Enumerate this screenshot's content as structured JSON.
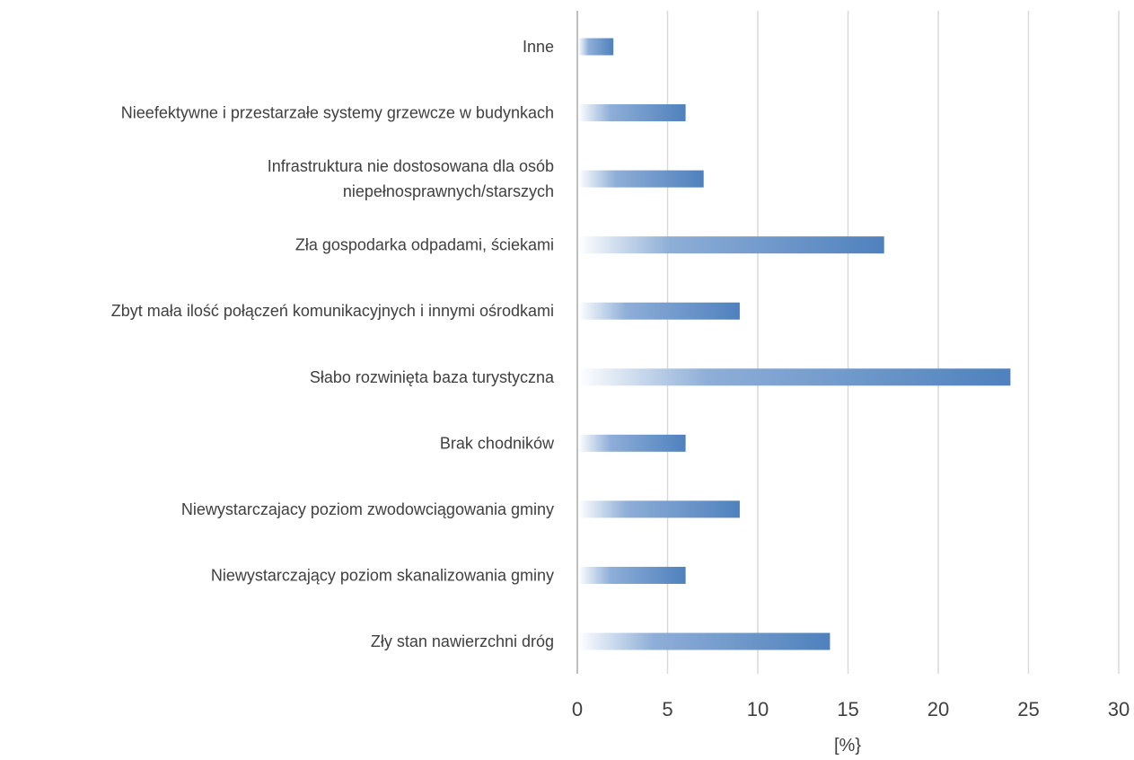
{
  "chart_data": {
    "type": "bar",
    "orientation": "horizontal",
    "categories": [
      [
        "Zły stan nawierzchni dróg"
      ],
      [
        "Niewystarczający poziom skanalizowania gminy"
      ],
      [
        "Niewystarczajacy poziom zwodowciągowania gminy"
      ],
      [
        "Brak chodników"
      ],
      [
        "Słabo rozwinięta baza turystyczna"
      ],
      [
        "Zbyt mała ilość połączeń komunikacyjnych i innymi ośrodkami"
      ],
      [
        "Zła gospodarka odpadami, ściekami"
      ],
      [
        "Infrastruktura nie dostosowana dla osób",
        "niepełnosprawnych/starszych"
      ],
      [
        "Nieefektywne i przestarzałe systemy grzewcze w budynkach"
      ],
      [
        "Inne"
      ]
    ],
    "values": [
      14,
      6,
      9,
      6,
      24,
      9,
      17,
      7,
      6,
      2
    ],
    "xlim": [
      0,
      30
    ],
    "xticks": [
      0,
      5,
      10,
      15,
      20,
      25,
      30
    ],
    "xlabel": "[%}",
    "ylabel": "",
    "title": "",
    "grid": "vertical",
    "legend": "none",
    "bar_color": "#4f81bd",
    "bar_fill": "gradient"
  }
}
